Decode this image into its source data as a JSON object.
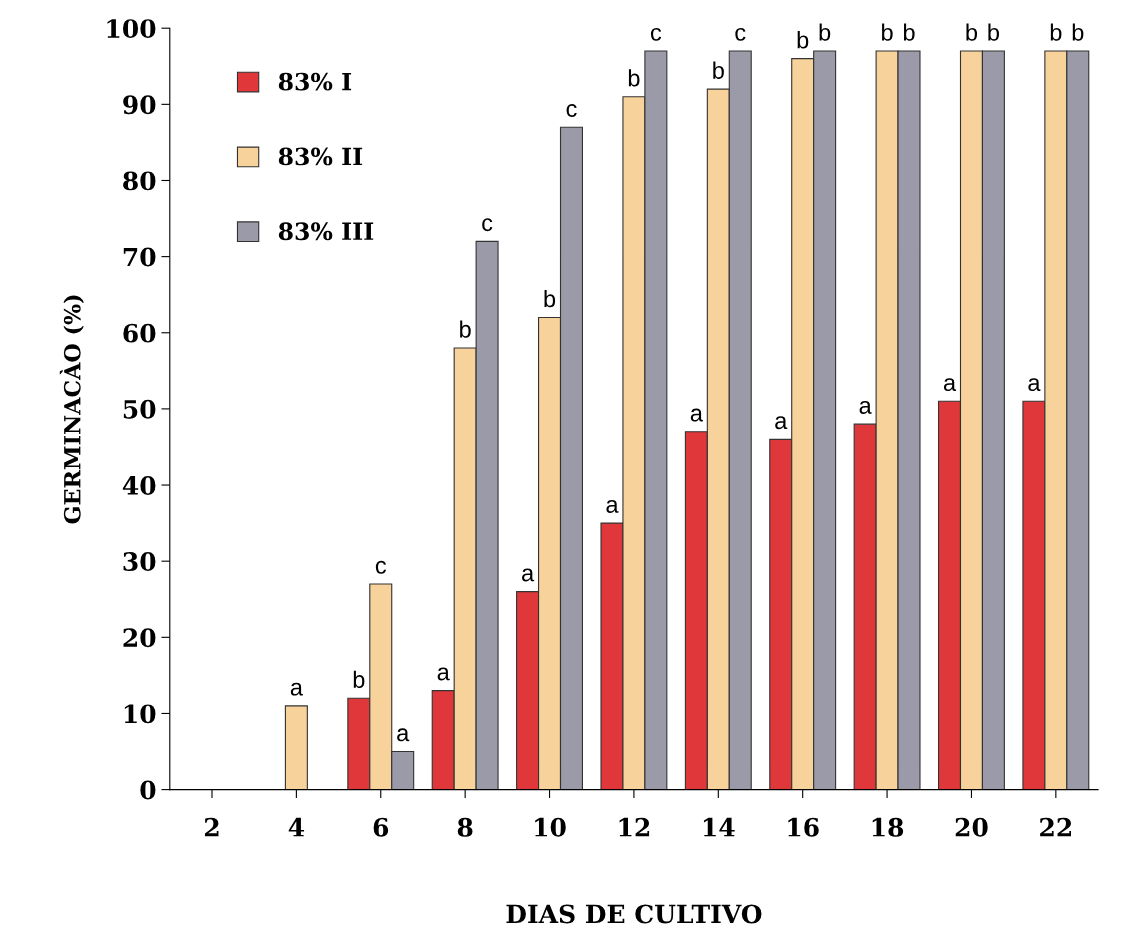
{
  "chart_data": {
    "type": "bar",
    "xlabel": "DIAS DE CULTIVO",
    "ylabel": "GERMINACÀO (%)",
    "categories": [
      "2",
      "4",
      "6",
      "8",
      "10",
      "12",
      "14",
      "16",
      "18",
      "20",
      "22"
    ],
    "series": [
      {
        "name": "83% I",
        "color": "#e0383a",
        "values": [
          null,
          null,
          12,
          13,
          26,
          35,
          47,
          46,
          48,
          51,
          51
        ],
        "value_labels": [
          null,
          null,
          "b",
          "a",
          "a",
          "a",
          "a",
          "a",
          "a",
          "a",
          "a"
        ]
      },
      {
        "name": "83% II",
        "color": "#f7d29a",
        "values": [
          null,
          11,
          27,
          58,
          62,
          91,
          92,
          96,
          97,
          97,
          97
        ],
        "value_labels": [
          null,
          "a",
          "c",
          "b",
          "b",
          "b",
          "b",
          "b",
          "b",
          "b",
          "b"
        ]
      },
      {
        "name": "83% III",
        "color": "#9a9aa8",
        "values": [
          null,
          null,
          5,
          72,
          87,
          97,
          97,
          97,
          97,
          97,
          97
        ],
        "value_labels": [
          null,
          null,
          "a",
          "c",
          "c",
          "c",
          "c",
          "b",
          "b",
          "b",
          "b"
        ]
      }
    ],
    "ylim": [
      0,
      100
    ],
    "yticks": [
      0,
      10,
      20,
      30,
      40,
      50,
      60,
      70,
      80,
      90,
      100
    ],
    "grid": false,
    "legend": "top left"
  }
}
